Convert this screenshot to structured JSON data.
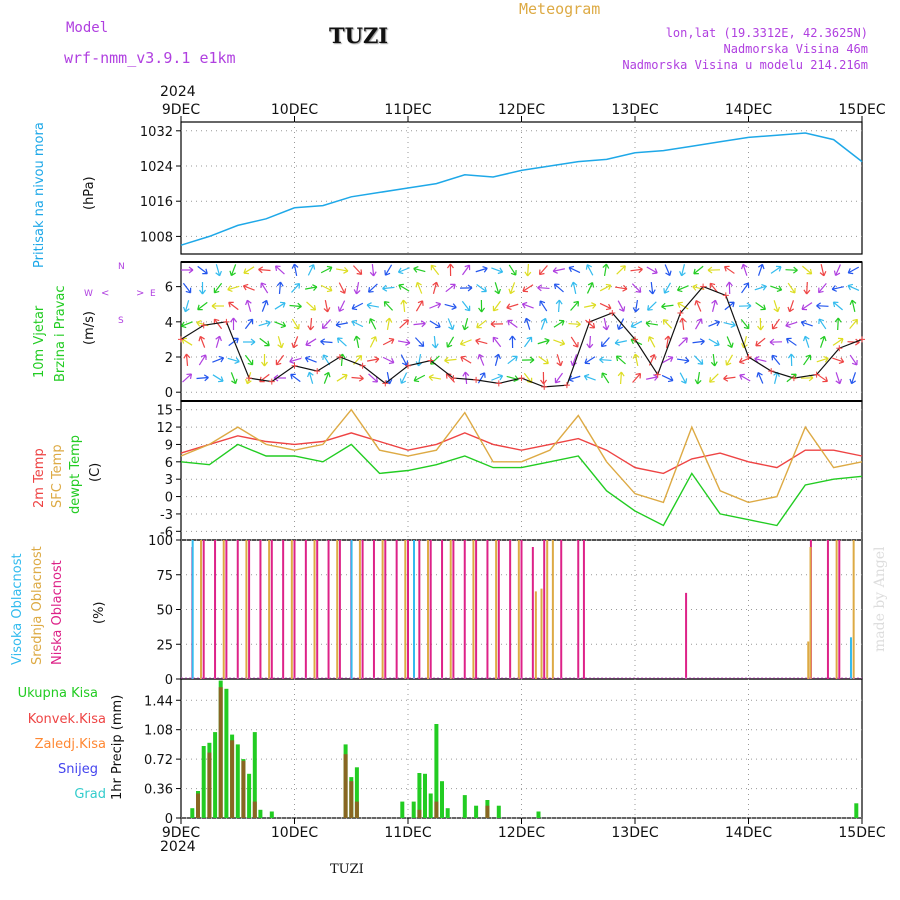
{
  "header": {
    "model_label": "Model",
    "model_name": "wrf-nmm_v3.9.1 e1km",
    "station": "TUZI",
    "product": "Meteogram",
    "lonlat": "lon,lat (19.3312E, 42.3625N)",
    "elevation": "Nadmorska Visina 46m",
    "model_elevation": "Nadmorska Visina u modelu 214.216m",
    "credit": "made by Angel",
    "footer_station": "TUZI"
  },
  "colors": {
    "pressure": "#1ea8e8",
    "wind_title": "#22cc22",
    "wind_rose": "#b040e0",
    "t2m": "#ee4444",
    "sfc": "#ddaa44",
    "dew": "#22cc22",
    "high_cloud": "#33bbee",
    "mid_cloud": "#ddaa44",
    "low_cloud": "#dd2288",
    "precip_total": "#22cc22",
    "precip_conv": "#ee4444",
    "precip_frozen": "#ff8833",
    "precip_snow": "#4444ee",
    "precip_grad": "#33cccc",
    "header_model": "#b040e0",
    "header_product": "#ddaa44"
  },
  "time_axis": {
    "year": "2024",
    "ticks": [
      "9DEC",
      "10DEC",
      "11DEC",
      "12DEC",
      "13DEC",
      "14DEC",
      "15DEC"
    ]
  },
  "panels": {
    "pressure": {
      "ylabel_main": "Pritisak na nivou mora",
      "unit": "(hPa)"
    },
    "wind": {
      "ylabel_1": "10m Vjetar",
      "ylabel_2": "Brzina i Pravac",
      "unit": "(m/s)",
      "rose_n": "N",
      "rose_w": "W",
      "rose_e": "E",
      "rose_s": "S",
      "rose_west_arrow": "<",
      "rose_east_arrow": ">"
    },
    "temp": {
      "label_1": "2m Temp",
      "label_2": "SFC Temp",
      "label_3": "dewpt Temp",
      "unit": "(C)"
    },
    "cloud": {
      "label_1": "Visoka Oblacnost",
      "label_2": "Srednja Oblacnost",
      "label_3": "Niska Oblacnost",
      "unit": "(%)"
    },
    "precip": {
      "legend": [
        "Ukupna Kisa",
        "Konvek.Kisa",
        "Zaledj.Kisa",
        "Snijeg",
        "Grad"
      ],
      "ylabel": "1hr Precip (mm)"
    }
  },
  "chart_data": [
    {
      "type": "line",
      "title": "",
      "ylabel": "Pritisak na nivou mora (hPa)",
      "ylim": [
        1004,
        1034
      ],
      "yticks": [
        1008,
        1016,
        1024,
        1032
      ],
      "grid": true,
      "x_days": [
        0,
        0.25,
        0.5,
        0.75,
        1,
        1.25,
        1.5,
        1.75,
        2,
        2.25,
        2.5,
        2.75,
        3,
        3.25,
        3.5,
        3.75,
        4,
        4.25,
        4.5,
        4.75,
        5,
        5.25,
        5.5,
        5.75,
        6
      ],
      "series": [
        {
          "values": [
            1006,
            1008,
            1010.5,
            1012,
            1014.5,
            1015,
            1017,
            1018,
            1019,
            1020,
            1022,
            1021.5,
            1023,
            1024,
            1025,
            1025.5,
            1027,
            1027.5,
            1028.5,
            1029.5,
            1030.5,
            1031,
            1031.5,
            1030,
            1025
          ]
        }
      ]
    },
    {
      "type": "line",
      "title": "",
      "ylabel": "10m Vjetar Brzina i Pravac (m/s)",
      "ylim": [
        -0.5,
        7.4
      ],
      "yticks": [
        0,
        2,
        4,
        6
      ],
      "grid": true,
      "x_days": [
        0,
        0.2,
        0.4,
        0.6,
        0.8,
        1,
        1.2,
        1.4,
        1.6,
        1.8,
        2,
        2.2,
        2.4,
        2.6,
        2.8,
        3,
        3.2,
        3.4,
        3.6,
        3.8,
        4,
        4.2,
        4.4,
        4.6,
        4.8,
        5,
        5.2,
        5.4,
        5.6,
        5.8,
        6
      ],
      "series": [
        {
          "name": "speed",
          "values": [
            3,
            3.8,
            4,
            0.8,
            0.6,
            1.5,
            1.2,
            2,
            1.5,
            0.5,
            1.5,
            1.8,
            0.8,
            0.7,
            0.5,
            0.8,
            0.3,
            0.4,
            4,
            4.5,
            3,
            1,
            4.5,
            6,
            5.5,
            2,
            1.2,
            0.8,
            1,
            2.5,
            3
          ]
        }
      ]
    },
    {
      "type": "line",
      "title": "",
      "ylabel": "Temperatura (C)",
      "ylim": [
        -7.5,
        16.5
      ],
      "yticks": [
        -6,
        -3,
        0,
        3,
        6,
        9,
        12,
        15
      ],
      "grid": true,
      "x_days": [
        0,
        0.25,
        0.5,
        0.75,
        1,
        1.25,
        1.5,
        1.75,
        2,
        2.25,
        2.5,
        2.75,
        3,
        3.25,
        3.5,
        3.75,
        4,
        4.25,
        4.5,
        4.75,
        5,
        5.25,
        5.5,
        5.75,
        6
      ],
      "series": [
        {
          "name": "2m Temp",
          "values": [
            7.5,
            9,
            10.5,
            9.5,
            9,
            9.5,
            11,
            9.5,
            8,
            9,
            11,
            9,
            8,
            9,
            10,
            8,
            5,
            4,
            6.5,
            7.5,
            6,
            5,
            8,
            8,
            7
          ]
        },
        {
          "name": "SFC Temp",
          "values": [
            7,
            9,
            12,
            9,
            8,
            9,
            15,
            8,
            7,
            8,
            14.5,
            6,
            6,
            8,
            14,
            6,
            0.5,
            -1,
            12,
            1,
            -1,
            0,
            12,
            5,
            6
          ]
        },
        {
          "name": "dewpt Temp",
          "values": [
            6,
            5.5,
            9,
            7,
            7,
            6,
            9,
            4,
            4.5,
            5.5,
            7,
            5,
            5,
            6,
            7,
            1,
            -2.5,
            -5,
            4,
            -3,
            -4,
            -5,
            2,
            3,
            3.5
          ]
        }
      ]
    },
    {
      "type": "bar",
      "title": "",
      "ylabel": "Oblacnost (%)",
      "ylim": [
        0,
        100
      ],
      "yticks": [
        0,
        25,
        50,
        75,
        100
      ],
      "grid": true,
      "series": [
        {
          "name": "Niska Oblacnost",
          "x_days": [
            0.1,
            0.2,
            0.3,
            0.4,
            0.5,
            0.6,
            0.7,
            0.8,
            0.9,
            1,
            1.1,
            1.2,
            1.3,
            1.4,
            1.5,
            1.6,
            1.7,
            1.8,
            1.9,
            2,
            2.1,
            2.2,
            2.3,
            2.4,
            2.5,
            2.6,
            2.7,
            2.8,
            2.9,
            3,
            3.1,
            3.2,
            3.35,
            3.5,
            3.55,
            4.45,
            5.55,
            5.7,
            5.8
          ],
          "values": [
            95,
            100,
            100,
            100,
            100,
            100,
            100,
            100,
            100,
            100,
            100,
            100,
            100,
            100,
            100,
            100,
            100,
            100,
            100,
            100,
            100,
            100,
            100,
            100,
            100,
            100,
            100,
            100,
            100,
            100,
            95,
            100,
            100,
            100,
            100,
            62,
            100,
            100,
            100
          ]
        },
        {
          "name": "Srednja Oblacnost",
          "x_days": [
            0.15,
            0.35,
            0.55,
            0.75,
            0.95,
            1.15,
            1.35,
            1.55,
            1.75,
            1.95,
            2.15,
            2.35,
            2.55,
            2.75,
            2.95,
            3.1,
            3.15,
            3.2,
            3.25,
            5.5,
            5.52,
            5.75,
            5.9
          ],
          "values": [
            100,
            100,
            100,
            100,
            100,
            100,
            100,
            100,
            100,
            100,
            100,
            100,
            100,
            100,
            100,
            63,
            65,
            100,
            100,
            27,
            95,
            100,
            100
          ]
        },
        {
          "name": "Visoka Oblacnost",
          "x_days": [
            0.05,
            1.45,
            2.0,
            5.85
          ],
          "values": [
            100,
            100,
            100,
            30
          ]
        }
      ]
    },
    {
      "type": "bar",
      "title": "",
      "ylabel": "1hr Precip (mm)",
      "ylim": [
        0,
        1.7
      ],
      "yticks": [
        0,
        0.36,
        0.72,
        1.08,
        1.44
      ],
      "grid": true,
      "series": [
        {
          "name": "Ukupna Kisa",
          "x_days": [
            0.1,
            0.15,
            0.2,
            0.25,
            0.3,
            0.35,
            0.4,
            0.45,
            0.5,
            0.55,
            0.6,
            0.65,
            0.7,
            0.8,
            1.45,
            1.5,
            1.55,
            1.95,
            2.05,
            2.1,
            2.15,
            2.2,
            2.25,
            2.3,
            2.35,
            2.5,
            2.6,
            2.7,
            2.8,
            3.15,
            5.95
          ],
          "values": [
            0.12,
            0.33,
            0.88,
            0.92,
            1.05,
            1.68,
            1.58,
            1.02,
            0.9,
            0.72,
            0.54,
            1.05,
            0.1,
            0.08,
            0.9,
            0.5,
            0.62,
            0.2,
            0.2,
            0.55,
            0.54,
            0.3,
            1.15,
            0.45,
            0.12,
            0.28,
            0.15,
            0.22,
            0.15,
            0.08,
            0.18
          ]
        },
        {
          "name": "Konvek.Kisa",
          "x_days": [
            0.15,
            0.25,
            0.35,
            0.45,
            0.55,
            0.65,
            1.45,
            1.5,
            1.55,
            2.1,
            2.25,
            2.7
          ],
          "values": [
            0.3,
            0.8,
            1.6,
            0.95,
            0.7,
            0.2,
            0.78,
            0.45,
            0.2,
            0.1,
            0.2,
            0.15
          ]
        },
        {
          "name": "Zaledj.Kisa",
          "x_days": [],
          "values": []
        },
        {
          "name": "Snijeg",
          "x_days": [],
          "values": []
        },
        {
          "name": "Grad",
          "x_days": [],
          "values": []
        }
      ]
    }
  ]
}
